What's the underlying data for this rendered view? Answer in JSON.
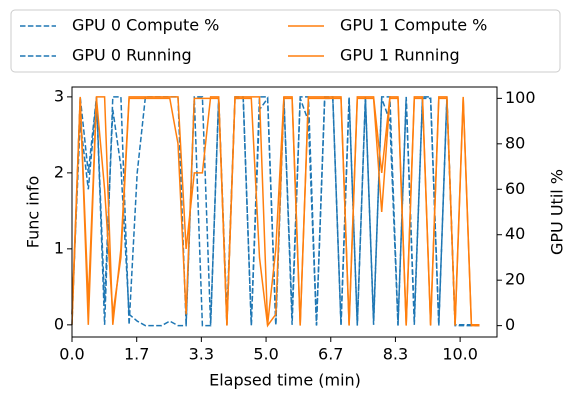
{
  "chart_data": {
    "type": "line",
    "xlabel": "Elapsed time (min)",
    "ylabel": "Func info",
    "y2label": "GPU Util %",
    "x": [
      0,
      0.21,
      0.42,
      0.63,
      0.84,
      1.05,
      1.26,
      1.47,
      1.68,
      1.89,
      2.1,
      2.31,
      2.52,
      2.73,
      2.94,
      3.15,
      3.36,
      3.57,
      3.78,
      3.99,
      4.2,
      4.41,
      4.62,
      4.83,
      5.04,
      5.25,
      5.46,
      5.67,
      5.88,
      6.09,
      6.3,
      6.51,
      6.72,
      6.93,
      7.14,
      7.35,
      7.56,
      7.77,
      7.98,
      8.19,
      8.4,
      8.61,
      8.82,
      9.03,
      9.24,
      9.45,
      9.66,
      9.87,
      10.08,
      10.29,
      10.5
    ],
    "series": [
      {
        "name": "GPU 0 Compute %",
        "color": "#1f77b4",
        "linestyle": "dashed",
        "axis": "y2",
        "values": [
          5,
          90,
          60,
          100,
          10,
          95,
          70,
          5,
          2,
          0,
          0,
          0,
          2,
          0,
          0,
          100,
          0,
          0,
          100,
          5,
          100,
          100,
          0,
          95,
          100,
          0,
          100,
          5,
          100,
          90,
          0,
          100,
          100,
          0,
          100,
          0,
          100,
          2,
          100,
          90,
          0,
          100,
          3,
          100,
          100,
          0,
          100,
          0,
          0,
          0,
          0
        ]
      },
      {
        "name": "GPU 0 Running",
        "color": "#1f77b4",
        "linestyle": "dashed",
        "values": [
          0,
          3,
          2,
          3,
          0,
          3,
          3,
          0,
          2,
          3,
          3,
          3,
          3,
          3,
          0,
          3,
          3,
          0,
          3,
          0,
          3,
          3,
          0,
          3,
          3,
          0,
          3,
          0,
          3,
          3,
          0,
          3,
          3,
          0,
          3,
          0,
          3,
          0,
          3,
          3,
          0,
          3,
          0,
          3,
          3,
          0,
          3,
          0,
          0,
          0,
          0
        ]
      },
      {
        "name": "GPU 1 Compute %",
        "color": "#ff7f0e",
        "linestyle": "solid",
        "axis": "y2",
        "values": [
          5,
          100,
          10,
          100,
          60,
          5,
          30,
          100,
          100,
          100,
          100,
          100,
          100,
          80,
          5,
          100,
          100,
          100,
          100,
          0,
          100,
          100,
          100,
          30,
          0,
          5,
          100,
          100,
          0,
          100,
          100,
          100,
          100,
          100,
          0,
          100,
          100,
          100,
          50,
          100,
          100,
          0,
          100,
          100,
          0,
          100,
          100,
          0,
          100,
          0,
          0
        ]
      },
      {
        "name": "GPU 1 Running",
        "color": "#ff7f0e",
        "linestyle": "solid",
        "values": [
          0,
          3,
          0,
          3,
          3,
          0,
          1,
          3,
          3,
          3,
          3,
          3,
          3,
          3,
          1,
          2,
          2,
          3,
          3,
          0,
          3,
          3,
          3,
          3,
          0,
          1,
          3,
          3,
          0,
          3,
          3,
          3,
          3,
          3,
          0,
          3,
          3,
          3,
          2,
          3,
          3,
          0,
          3,
          3,
          0,
          3,
          3,
          0,
          3,
          0,
          0
        ]
      }
    ],
    "xlim": [
      0,
      10.95
    ],
    "xticks": [
      {
        "value": 0,
        "label": "0.0"
      },
      {
        "value": 1.667,
        "label": "1.7"
      },
      {
        "value": 3.333,
        "label": "3.3"
      },
      {
        "value": 5,
        "label": "5.0"
      },
      {
        "value": 6.667,
        "label": "6.7"
      },
      {
        "value": 8.333,
        "label": "8.3"
      },
      {
        "value": 10,
        "label": "10.0"
      }
    ],
    "ylim": [
      -0.16,
      3.13
    ],
    "yticks": [
      0,
      1,
      2,
      3
    ],
    "y2lim": [
      -5,
      105
    ],
    "y2ticks": [
      0,
      20,
      40,
      60,
      80,
      100
    ],
    "legend": "top"
  }
}
